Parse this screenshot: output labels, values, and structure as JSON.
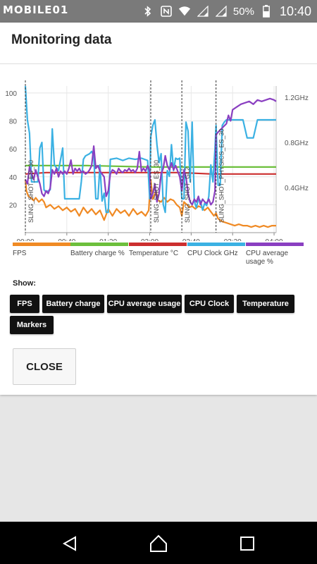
{
  "status_bar": {
    "watermark": "MOBILE01",
    "battery_text": "50%",
    "time": "10:40",
    "icons": [
      "bluetooth-icon",
      "nfc-icon",
      "wifi-icon",
      "signal-icon",
      "signal-icon",
      "battery-icon"
    ]
  },
  "dialog": {
    "title": "Monitoring data",
    "close_label": "CLOSE"
  },
  "chart_data": {
    "type": "line",
    "x_tick_labels": [
      "00:00",
      "00:40",
      "01:20",
      "02:00",
      "02:40",
      "03:20",
      "04:00"
    ],
    "y_left_ticks": [
      20,
      40,
      60,
      80,
      100
    ],
    "y_left_range": [
      0,
      105
    ],
    "y_right_ticks": [
      "0.4GHz",
      "0.8GHz",
      "1.2GHz"
    ],
    "y_right_range_ghz": [
      0,
      1.3
    ],
    "grid": true,
    "x_minutes": [
      0,
      242
    ],
    "markers": [
      {
        "label": "SLING_SHOT_ES_30",
        "t": 0
      },
      {
        "label": "SLING_SHOT_ES_30",
        "t": 121
      },
      {
        "label": "SLING_SHOT_GL2",
        "t": 151
      },
      {
        "label": "SLING_SHOT_PHYSICS_ES_30",
        "t": 184
      }
    ],
    "series": [
      {
        "name": "FPS",
        "color": "#f08a24",
        "axis": "left",
        "points": [
          [
            0,
            38
          ],
          [
            1,
            30
          ],
          [
            3,
            26
          ],
          [
            5,
            25
          ],
          [
            8,
            23
          ],
          [
            10,
            25
          ],
          [
            13,
            22
          ],
          [
            16,
            24
          ],
          [
            18,
            22
          ],
          [
            20,
            18
          ],
          [
            24,
            20
          ],
          [
            28,
            17
          ],
          [
            32,
            19
          ],
          [
            36,
            16
          ],
          [
            40,
            18
          ],
          [
            44,
            15
          ],
          [
            48,
            17
          ],
          [
            52,
            12
          ],
          [
            56,
            18
          ],
          [
            60,
            14
          ],
          [
            64,
            17
          ],
          [
            68,
            13
          ],
          [
            72,
            16
          ],
          [
            76,
            9
          ],
          [
            80,
            17
          ],
          [
            84,
            12
          ],
          [
            88,
            17
          ],
          [
            92,
            14
          ],
          [
            96,
            16
          ],
          [
            100,
            12
          ],
          [
            104,
            17
          ],
          [
            108,
            13
          ],
          [
            112,
            15
          ],
          [
            116,
            12
          ],
          [
            119,
            16
          ],
          [
            121,
            38
          ],
          [
            123,
            24
          ],
          [
            126,
            30
          ],
          [
            128,
            23
          ],
          [
            131,
            22
          ],
          [
            134,
            25
          ],
          [
            137,
            22
          ],
          [
            140,
            24
          ],
          [
            143,
            23
          ],
          [
            146,
            20
          ],
          [
            149,
            18
          ],
          [
            151,
            12
          ],
          [
            153,
            22
          ],
          [
            156,
            20
          ],
          [
            158,
            18
          ],
          [
            161,
            19
          ],
          [
            164,
            17
          ],
          [
            167,
            19
          ],
          [
            170,
            18
          ],
          [
            173,
            16
          ],
          [
            176,
            18
          ],
          [
            179,
            15
          ],
          [
            182,
            12
          ],
          [
            184,
            14
          ],
          [
            186,
            10
          ],
          [
            190,
            8
          ],
          [
            194,
            7
          ],
          [
            198,
            6
          ],
          [
            202,
            5
          ],
          [
            206,
            6
          ],
          [
            210,
            5
          ],
          [
            214,
            5
          ],
          [
            218,
            4
          ],
          [
            222,
            5
          ],
          [
            226,
            4
          ],
          [
            230,
            5
          ],
          [
            234,
            4
          ],
          [
            238,
            5
          ],
          [
            242,
            5
          ]
        ]
      },
      {
        "name": "Battery charge %",
        "color": "#6cbf3c",
        "axis": "left",
        "points": [
          [
            0,
            48
          ],
          [
            60,
            48
          ],
          [
            120,
            47
          ],
          [
            180,
            47
          ],
          [
            242,
            47
          ]
        ]
      },
      {
        "name": "Temperature °C",
        "color": "#cc2f2f",
        "axis": "left",
        "points": [
          [
            0,
            42
          ],
          [
            20,
            43
          ],
          [
            40,
            43
          ],
          [
            80,
            43
          ],
          [
            120,
            43
          ],
          [
            150,
            43
          ],
          [
            180,
            42
          ],
          [
            242,
            42
          ]
        ]
      },
      {
        "name": "CPU Clock GHz",
        "color": "#3bb1e3",
        "axis": "right",
        "points": [
          [
            0,
            1.3
          ],
          [
            2,
            1.0
          ],
          [
            4,
            0.88
          ],
          [
            6,
            0.45
          ],
          [
            12,
            0.45
          ],
          [
            14,
            0.75
          ],
          [
            16,
            0.8
          ],
          [
            18,
            0.38
          ],
          [
            20,
            0.36
          ],
          [
            24,
            0.38
          ],
          [
            26,
            0.92
          ],
          [
            28,
            0.6
          ],
          [
            32,
            0.55
          ],
          [
            36,
            0.75
          ],
          [
            38,
            0.3
          ],
          [
            40,
            0.3
          ],
          [
            52,
            0.3
          ],
          [
            54,
            0.45
          ],
          [
            56,
            0.65
          ],
          [
            58,
            0.68
          ],
          [
            62,
            0.7
          ],
          [
            64,
            0.72
          ],
          [
            66,
            0.68
          ],
          [
            68,
            0.3
          ],
          [
            70,
            0.3
          ],
          [
            72,
            0.6
          ],
          [
            74,
            0.28
          ],
          [
            76,
            0.35
          ],
          [
            78,
            0.18
          ],
          [
            80,
            0.18
          ],
          [
            82,
            0.65
          ],
          [
            88,
            0.66
          ],
          [
            94,
            0.64
          ],
          [
            100,
            0.66
          ],
          [
            106,
            0.65
          ],
          [
            112,
            0.66
          ],
          [
            118,
            0.64
          ],
          [
            120,
            0.3
          ],
          [
            121,
            0.85
          ],
          [
            123,
            0.95
          ],
          [
            125,
            1.0
          ],
          [
            127,
            0.78
          ],
          [
            129,
            0.62
          ],
          [
            131,
            0.7
          ],
          [
            133,
            0.25
          ],
          [
            135,
            0.18
          ],
          [
            137,
            0.55
          ],
          [
            139,
            0.5
          ],
          [
            141,
            0.78
          ],
          [
            143,
            0.55
          ],
          [
            145,
            0.66
          ],
          [
            147,
            0.65
          ],
          [
            149,
            0.66
          ],
          [
            151,
            0.3
          ],
          [
            153,
            0.3
          ],
          [
            155,
            0.98
          ],
          [
            157,
            0.9
          ],
          [
            159,
            0.45
          ],
          [
            161,
            0.98
          ],
          [
            163,
            0.28
          ],
          [
            165,
            0.22
          ],
          [
            167,
            0.3
          ],
          [
            169,
            0.28
          ],
          [
            171,
            0.2
          ],
          [
            173,
            0.26
          ],
          [
            175,
            0.24
          ],
          [
            177,
            0.32
          ],
          [
            179,
            0.6
          ],
          [
            181,
            0.45
          ],
          [
            183,
            0.75
          ],
          [
            184,
            0.95
          ],
          [
            186,
            0.42
          ],
          [
            188,
            0.42
          ],
          [
            190,
            0.95
          ],
          [
            192,
            0.98
          ],
          [
            194,
            1.0
          ],
          [
            210,
            1.0
          ],
          [
            214,
            0.84
          ],
          [
            220,
            0.84
          ],
          [
            224,
            1.0
          ],
          [
            242,
            1.0
          ]
        ]
      },
      {
        "name": "CPU average usage %",
        "color": "#8a3fc1",
        "axis": "left",
        "points": [
          [
            0,
            38
          ],
          [
            2,
            35
          ],
          [
            4,
            47
          ],
          [
            6,
            42
          ],
          [
            8,
            38
          ],
          [
            10,
            45
          ],
          [
            12,
            40
          ],
          [
            14,
            35
          ],
          [
            16,
            28
          ],
          [
            18,
            26
          ],
          [
            20,
            30
          ],
          [
            22,
            28
          ],
          [
            24,
            32
          ],
          [
            26,
            45
          ],
          [
            28,
            42
          ],
          [
            30,
            46
          ],
          [
            32,
            40
          ],
          [
            34,
            44
          ],
          [
            36,
            42
          ],
          [
            38,
            44
          ],
          [
            40,
            42
          ],
          [
            42,
            46
          ],
          [
            44,
            52
          ],
          [
            46,
            42
          ],
          [
            48,
            46
          ],
          [
            50,
            44
          ],
          [
            52,
            46
          ],
          [
            54,
            43
          ],
          [
            56,
            44
          ],
          [
            58,
            42
          ],
          [
            60,
            43
          ],
          [
            62,
            45
          ],
          [
            64,
            48
          ],
          [
            66,
            62
          ],
          [
            68,
            46
          ],
          [
            70,
            48
          ],
          [
            72,
            44
          ],
          [
            74,
            42
          ],
          [
            76,
            40
          ],
          [
            78,
            26
          ],
          [
            80,
            30
          ],
          [
            82,
            42
          ],
          [
            84,
            45
          ],
          [
            86,
            44
          ],
          [
            88,
            42
          ],
          [
            90,
            46
          ],
          [
            92,
            44
          ],
          [
            94,
            43
          ],
          [
            96,
            45
          ],
          [
            98,
            44
          ],
          [
            100,
            46
          ],
          [
            102,
            44
          ],
          [
            104,
            45
          ],
          [
            106,
            43
          ],
          [
            108,
            46
          ],
          [
            110,
            58
          ],
          [
            112,
            44
          ],
          [
            114,
            46
          ],
          [
            116,
            44
          ],
          [
            118,
            48
          ],
          [
            120,
            44
          ],
          [
            121,
            24
          ],
          [
            123,
            28
          ],
          [
            125,
            35
          ],
          [
            127,
            22
          ],
          [
            129,
            28
          ],
          [
            131,
            42
          ],
          [
            133,
            46
          ],
          [
            135,
            55
          ],
          [
            137,
            48
          ],
          [
            139,
            45
          ],
          [
            141,
            50
          ],
          [
            143,
            45
          ],
          [
            145,
            48
          ],
          [
            147,
            44
          ],
          [
            149,
            40
          ],
          [
            151,
            30
          ],
          [
            153,
            45
          ],
          [
            155,
            40
          ],
          [
            157,
            28
          ],
          [
            159,
            22
          ],
          [
            161,
            20
          ],
          [
            163,
            24
          ],
          [
            165,
            22
          ],
          [
            167,
            26
          ],
          [
            169,
            20
          ],
          [
            171,
            24
          ],
          [
            173,
            22
          ],
          [
            175,
            21
          ],
          [
            177,
            24
          ],
          [
            179,
            20
          ],
          [
            181,
            22
          ],
          [
            183,
            30
          ],
          [
            184,
            70
          ],
          [
            186,
            72
          ],
          [
            190,
            75
          ],
          [
            194,
            78
          ],
          [
            196,
            84
          ],
          [
            198,
            80
          ],
          [
            200,
            88
          ],
          [
            204,
            90
          ],
          [
            208,
            92
          ],
          [
            212,
            93
          ],
          [
            216,
            94
          ],
          [
            220,
            92
          ],
          [
            224,
            95
          ],
          [
            228,
            94
          ],
          [
            232,
            95
          ],
          [
            236,
            96
          ],
          [
            240,
            95
          ],
          [
            242,
            94
          ]
        ]
      }
    ]
  },
  "legend": [
    {
      "label": "FPS",
      "color": "#f08a24"
    },
    {
      "label": "Battery charge %",
      "color": "#6cbf3c"
    },
    {
      "label": "Temperature °C",
      "color": "#cc2f2f"
    },
    {
      "label": "CPU Clock GHz",
      "color": "#3bb1e3"
    },
    {
      "label": "CPU average usage %",
      "color": "#8a3fc1"
    }
  ],
  "show": {
    "label": "Show:",
    "chips": [
      "FPS",
      "Battery charge",
      "CPU average usage",
      "CPU Clock",
      "Temperature",
      "Markers"
    ]
  },
  "nav_bar": {
    "icons": [
      "back-icon",
      "home-icon",
      "recents-icon"
    ]
  }
}
